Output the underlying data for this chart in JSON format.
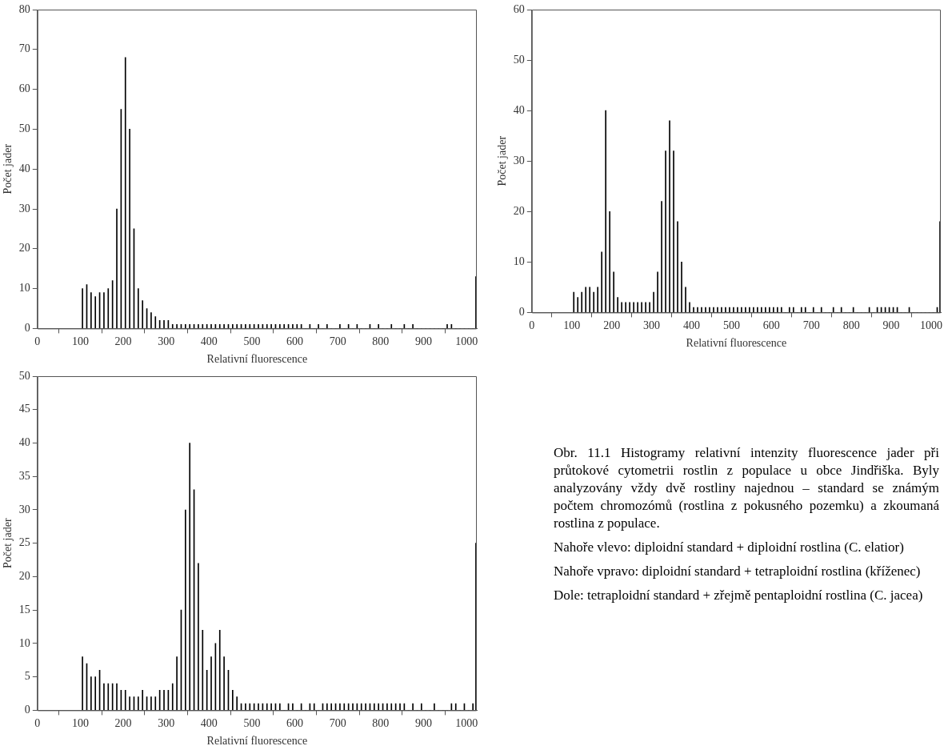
{
  "chart_data": [
    {
      "type": "histogram",
      "xlabel": "Relativní fluorescence",
      "ylabel": "Počet jader",
      "color": "#000000",
      "grid": false,
      "xlim": [
        0,
        1024
      ],
      "xticks": [
        0,
        100,
        200,
        300,
        400,
        500,
        600,
        700,
        800,
        900,
        1000
      ],
      "ylim": [
        0,
        80
      ],
      "yticks": [
        0,
        10,
        20,
        30,
        40,
        50,
        60,
        70,
        80
      ],
      "bins": [
        100,
        110,
        120,
        130,
        140,
        150,
        160,
        170,
        180,
        190,
        200,
        210,
        220,
        230,
        240,
        250,
        260,
        270,
        280,
        290,
        300,
        310,
        320,
        330,
        340,
        350,
        360,
        370,
        380,
        390,
        400,
        410,
        420,
        430,
        440,
        450,
        460,
        470,
        480,
        490,
        500,
        510,
        520,
        530,
        540,
        550,
        560,
        570,
        580,
        590,
        600,
        610,
        620,
        630,
        640,
        650,
        660,
        670,
        680,
        690,
        700,
        710,
        720,
        730,
        740,
        750,
        760,
        770,
        780,
        790,
        800,
        810,
        820,
        830,
        840,
        850,
        860,
        870,
        880,
        890,
        900,
        910,
        920,
        930,
        940,
        950,
        960,
        970,
        980,
        990,
        1000,
        1010,
        1020,
        1024
      ],
      "values": [
        10,
        11,
        9,
        8,
        9,
        9,
        10,
        12,
        30,
        55,
        68,
        50,
        25,
        10,
        7,
        5,
        4,
        3,
        2,
        2,
        2,
        1,
        1,
        1,
        1,
        1,
        1,
        1,
        1,
        1,
        1,
        1,
        1,
        1,
        1,
        1,
        1,
        1,
        1,
        1,
        1,
        1,
        1,
        1,
        1,
        1,
        1,
        1,
        1,
        1,
        1,
        1,
        0,
        1,
        0,
        1,
        0,
        1,
        0,
        0,
        1,
        0,
        1,
        0,
        1,
        0,
        0,
        1,
        0,
        1,
        0,
        0,
        1,
        0,
        0,
        1,
        0,
        1,
        0,
        0,
        0,
        0,
        0,
        0,
        0,
        1,
        1,
        0,
        0,
        0,
        0,
        0,
        13
      ]
    },
    {
      "type": "histogram",
      "xlabel": "Relativní fluorescence",
      "ylabel": "Počet jader",
      "color": "#000000",
      "grid": false,
      "xlim": [
        0,
        1024
      ],
      "xticks": [
        0,
        100,
        200,
        300,
        400,
        500,
        600,
        700,
        800,
        900,
        1000
      ],
      "ylim": [
        0,
        60
      ],
      "yticks": [
        0,
        10,
        20,
        30,
        40,
        50,
        60
      ],
      "bins": [
        100,
        110,
        120,
        130,
        140,
        150,
        160,
        170,
        180,
        190,
        200,
        210,
        220,
        230,
        240,
        250,
        260,
        270,
        280,
        290,
        300,
        310,
        320,
        330,
        340,
        350,
        360,
        370,
        380,
        390,
        400,
        410,
        420,
        430,
        440,
        450,
        460,
        470,
        480,
        490,
        500,
        510,
        520,
        530,
        540,
        550,
        560,
        570,
        580,
        590,
        600,
        610,
        620,
        630,
        640,
        650,
        660,
        670,
        680,
        690,
        700,
        710,
        720,
        730,
        740,
        750,
        760,
        770,
        780,
        790,
        800,
        810,
        820,
        830,
        840,
        850,
        860,
        870,
        880,
        890,
        900,
        910,
        920,
        930,
        940,
        950,
        960,
        970,
        980,
        990,
        1000,
        1010,
        1020,
        1024
      ],
      "values": [
        4,
        3,
        4,
        5,
        5,
        4,
        5,
        12,
        40,
        20,
        8,
        3,
        2,
        2,
        2,
        2,
        2,
        2,
        2,
        2,
        4,
        8,
        22,
        32,
        38,
        32,
        18,
        10,
        5,
        2,
        1,
        1,
        1,
        1,
        1,
        1,
        1,
        1,
        1,
        1,
        1,
        1,
        1,
        1,
        1,
        1,
        1,
        1,
        1,
        1,
        1,
        1,
        1,
        0,
        1,
        1,
        0,
        1,
        1,
        0,
        1,
        0,
        1,
        0,
        0,
        1,
        0,
        1,
        0,
        0,
        1,
        0,
        0,
        0,
        1,
        0,
        1,
        1,
        1,
        1,
        1,
        1,
        0,
        0,
        1,
        0,
        0,
        0,
        0,
        0,
        0,
        1,
        18
      ]
    },
    {
      "type": "histogram",
      "xlabel": "Relativní fluorescence",
      "ylabel": "Počet jader",
      "color": "#000000",
      "grid": false,
      "xlim": [
        0,
        1024
      ],
      "xticks": [
        0,
        100,
        200,
        300,
        400,
        500,
        600,
        700,
        800,
        900,
        1000
      ],
      "ylim": [
        0,
        50
      ],
      "yticks": [
        0,
        5,
        10,
        15,
        20,
        25,
        30,
        35,
        40,
        45,
        50
      ],
      "bins": [
        100,
        110,
        120,
        130,
        140,
        150,
        160,
        170,
        180,
        190,
        200,
        210,
        220,
        230,
        240,
        250,
        260,
        270,
        280,
        290,
        300,
        310,
        320,
        330,
        340,
        350,
        360,
        370,
        380,
        390,
        400,
        410,
        420,
        430,
        440,
        450,
        460,
        470,
        480,
        490,
        500,
        510,
        520,
        530,
        540,
        550,
        560,
        570,
        580,
        590,
        600,
        610,
        620,
        630,
        640,
        650,
        660,
        670,
        680,
        690,
        700,
        710,
        720,
        730,
        740,
        750,
        760,
        770,
        780,
        790,
        800,
        810,
        820,
        830,
        840,
        850,
        860,
        870,
        880,
        890,
        900,
        910,
        920,
        930,
        940,
        950,
        960,
        970,
        980,
        990,
        1000,
        1010,
        1020,
        1024
      ],
      "values": [
        8,
        7,
        5,
        5,
        6,
        4,
        4,
        4,
        4,
        3,
        3,
        2,
        2,
        2,
        3,
        2,
        2,
        2,
        3,
        3,
        3,
        4,
        8,
        15,
        30,
        40,
        33,
        22,
        12,
        6,
        8,
        10,
        12,
        8,
        6,
        3,
        2,
        1,
        1,
        1,
        1,
        1,
        1,
        1,
        1,
        1,
        1,
        0,
        1,
        1,
        0,
        1,
        0,
        1,
        1,
        0,
        1,
        1,
        1,
        1,
        1,
        1,
        1,
        1,
        1,
        1,
        1,
        1,
        1,
        1,
        1,
        1,
        1,
        1,
        1,
        1,
        0,
        1,
        0,
        1,
        0,
        0,
        1,
        0,
        0,
        0,
        1,
        1,
        0,
        1,
        0,
        1,
        25
      ]
    },
    {
      "type": "other",
      "annotations": [
        "Obr. 11.1 Histogramy relativní intenzity fluorescence jader při průtokové cytometrii rostlin z populace u obce Jindřiška. Byly analyzovány vždy dvě rostliny najednou – standard se známým počtem chromozómů (rostlina z pokusného pozemku) a zkoumaná rostlina z populace.",
        "Nahoře vlevo: diploidní standard + diploidní rostlina (C. elatior)",
        "Nahoře vpravo: diploidní standard + tetraploidní rostlina (kříženec)",
        "Dole: tetraploidní standard + zřejmě pentaploidní rostlina (C. jacea)"
      ]
    }
  ]
}
